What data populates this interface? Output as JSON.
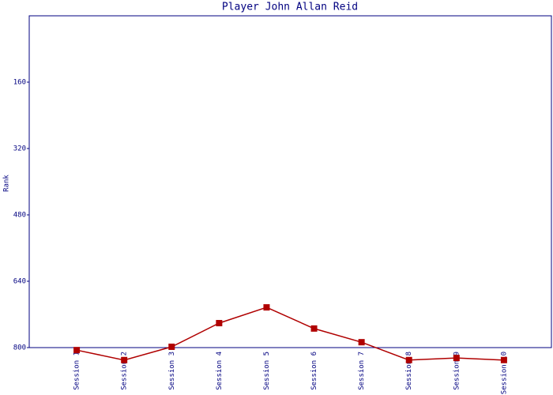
{
  "chart_data": {
    "type": "line",
    "title": "Player John Allan Reid",
    "y_label": "Rank",
    "categories": [
      "Session 1",
      "Session 2",
      "Session 3",
      "Session 4",
      "Session 5",
      "Session 6",
      "Session 7",
      "Session 8",
      "Session 9",
      "Session 10"
    ],
    "series": [
      {
        "name": "Rank",
        "color": "#b00000",
        "values": [
          806,
          830,
          798,
          741,
          703,
          754,
          787,
          830,
          825,
          830
        ]
      }
    ],
    "ylim": [
      0,
      800
    ],
    "y_inverted": true,
    "yticks": [
      160,
      320,
      480,
      640,
      800
    ],
    "grid": false
  }
}
